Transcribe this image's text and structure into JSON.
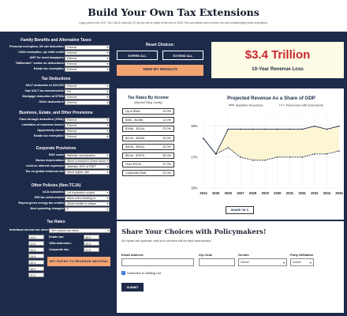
{
  "header": {
    "title": "Build Your Own Tax Extensions",
    "subtitle": "Large parts of the 2017 Tax Cuts & Jobs Act (TCJA) are set to expire at the end of 2025. This tool allows users to learn the cost of addressing those expirations."
  },
  "sections": [
    {
      "title": "Family Benefits and Alternative Taxes",
      "rows": [
        {
          "label": "Personal exemption, lift std deduction:",
          "value": "Extend"
        },
        {
          "label": "Child exemption, up child credit:",
          "value": "Extend"
        },
        {
          "label": "AMT for most taxpayers:",
          "value": "Extend"
        },
        {
          "label": "\"Millionaire\" surtax on deductions:",
          "value": "Extend"
        },
        {
          "label": "Estate tax exemption:",
          "value": "Extend"
        }
      ]
    },
    {
      "title": "Tax Deductions",
      "rows": [
        {
          "label": "SALT deduction to $10,000:",
          "value": "Extend"
        },
        {
          "label": "Cap SALT tax workarounds:",
          "value": "No"
        },
        {
          "label": "Mortgage deduction at $750k:",
          "value": "Extend"
        },
        {
          "label": "Other deductions:",
          "value": "Extend"
        }
      ]
    },
    {
      "title": "Business, Estate, and Other Provisions",
      "rows": [
        {
          "label": "Pass-through deduction (199A):",
          "value": "Extend"
        },
        {
          "label": "Limitation of business losses:",
          "value": "Extend"
        },
        {
          "label": "Opportunity zones:",
          "value": "Extend"
        },
        {
          "label": "Estate tax exemption:",
          "value": "Extend"
        }
      ]
    },
    {
      "title": "Corporate Provisions",
      "rows": [
        {
          "label": "R&E costs:",
          "value": "Maintain amortization"
        },
        {
          "label": "Bonus depreciation:",
          "value": "Allow scheduled phase-down"
        },
        {
          "label": "Limit on interest expenses:",
          "value": "Maintain 30% of EBIT"
        },
        {
          "label": "Tax on global minimum tax:",
          "value": "Allow higher rate"
        }
      ]
    },
    {
      "title": "Other Policies (Non-TCJA)",
      "rows": [
        {
          "label": "ACA subsidies:",
          "value": "Let expansion expire"
        },
        {
          "label": "IRS tax enforcement:",
          "value": "Allow extra funding to"
        },
        {
          "label": "Repeal green energy tax credits:",
          "value": "Allow credits to phase"
        },
        {
          "label": "New spending changes:",
          "value": "0"
        }
      ]
    }
  ],
  "tax_rates": {
    "title": "Tax Rates",
    "individual_label": "Individual income tax rates:",
    "individual_value": "Set custom tax rates",
    "brackets": [
      "10.0",
      "12.0",
      "22.0",
      "24.0",
      "32.0",
      "35.0",
      "37.0"
    ],
    "estate_label": "Estate tax:",
    "estate_value": "40.0",
    "e199a_label": "199a deduction:",
    "e199a_value": "20.0",
    "corp_label": "Corporate tax:",
    "corp_value": "21.0",
    "reset_button": "SET RATES TO REVENUE NEUTRAL"
  },
  "reset": {
    "title": "Reset Choices:",
    "expire_all": "EXPIRE ALL",
    "extend_all": "EXTEND ALL",
    "view_results": "VIEW MY RESULTS"
  },
  "revenue": {
    "amount": "$3.4 Trillion",
    "label": "10-Year Revenue Loss"
  },
  "rates_by_income": {
    "title": "Tax Rates By Income",
    "subtitle": "(Married Filing Jointly)",
    "items": [
      {
        "range": "Up to $34k:",
        "rate": "10.0%"
      },
      {
        "range": "$34k - $108k:",
        "rate": "12.0%"
      },
      {
        "range": "$108k - $211k:",
        "rate": "22.0%"
      },
      {
        "range": "$211k - $403k:",
        "rate": "24.0%"
      },
      {
        "range": "$403k - $511k:",
        "rate": "32.0%"
      },
      {
        "range": "$511k - $767k:",
        "rate": "35.0%"
      },
      {
        "range": "Over $767k:",
        "rate": "37.0%"
      },
      {
        "range": "Corporate Rate:",
        "rate": "21.0%"
      }
    ]
  },
  "chart_data": {
    "type": "line",
    "title": "Projected Revenue As a Share of GDP",
    "x": [
      "2024",
      "2025",
      "2026",
      "2027",
      "2028",
      "2029",
      "2030",
      "2031",
      "2032",
      "2033",
      "2034",
      "2035"
    ],
    "series": [
      {
        "name": "Baseline Revenues",
        "values": [
          17.6,
          17.1,
          17.9,
          17.9,
          17.9,
          17.9,
          17.9,
          17.9,
          17.9,
          18.0,
          17.9,
          18.0
        ],
        "color": "#1d2a4a",
        "style": "solid"
      },
      {
        "name": "Revenues with Extensions",
        "values": [
          17.6,
          17.1,
          17.3,
          17.0,
          16.9,
          16.9,
          17.0,
          17.0,
          17.0,
          17.1,
          17.1,
          17.2
        ],
        "color": "#1d2a4a",
        "style": "dashed"
      }
    ],
    "yticks": [
      "16%",
      "17%",
      "18%"
    ],
    "ylim": [
      16,
      18.4
    ],
    "fill_color": "#fdf6d4",
    "legend": "top"
  },
  "share_button": "SHARE ON 𝕏",
  "form": {
    "title": "Share Your Choices with Policymakers!",
    "note": "All inputs are optional, and your choices will be kept anonymous.",
    "email_label": "Email Address",
    "zip_label": "Zip Code",
    "gender_label": "Gender",
    "gender_value": "Select",
    "party_label": "Party Affiliation",
    "party_value": "Select",
    "subscribe_label": "Subscribe to Mailing List",
    "submit": "SUBMIT"
  }
}
